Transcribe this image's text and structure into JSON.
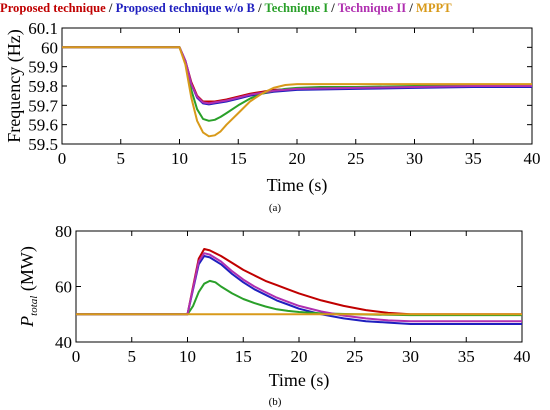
{
  "legend": {
    "entries": [
      {
        "label": "Proposed technique",
        "color": "#c00000"
      },
      {
        "label": "Proposed technique w/o B",
        "color": "#1f1fbf"
      },
      {
        "label": "Technique I",
        "color": "#2aa02a"
      },
      {
        "label": "Technique II",
        "color": "#b02fb0"
      },
      {
        "label": "MPPT",
        "color": "#d89a1a"
      }
    ],
    "separator": " / "
  },
  "chart_data": [
    {
      "type": "line",
      "caption": "(a)",
      "xlabel": "Time (s)",
      "ylabel": "Frequency (Hz)",
      "xlim": [
        0,
        40
      ],
      "ylim": [
        59.5,
        60.1
      ],
      "xticks": [
        0,
        5,
        10,
        15,
        20,
        25,
        30,
        35,
        40
      ],
      "yticks": [
        59.5,
        59.6,
        59.7,
        59.8,
        59.9,
        60.0,
        60.1
      ],
      "ytick_labels": [
        "59.5",
        "59.6",
        "59.7",
        "59.8",
        "59.9",
        "60",
        "60.1"
      ],
      "grid": false,
      "series": [
        {
          "name": "Proposed technique",
          "color": "#c00000",
          "x": [
            0,
            10,
            10.5,
            11,
            11.5,
            12,
            12.5,
            13,
            14,
            15,
            16,
            17,
            18,
            20,
            25,
            30,
            35,
            40
          ],
          "y": [
            60.0,
            60.0,
            59.93,
            59.82,
            59.75,
            59.72,
            59.72,
            59.72,
            59.73,
            59.745,
            59.76,
            59.77,
            59.78,
            59.785,
            59.79,
            59.795,
            59.8,
            59.8
          ]
        },
        {
          "name": "Proposed technique w/o B",
          "color": "#1f1fbf",
          "x": [
            0,
            10,
            10.5,
            11,
            11.5,
            12,
            12.5,
            13,
            14,
            15,
            16,
            17,
            18,
            20,
            25,
            30,
            35,
            40
          ],
          "y": [
            60.0,
            60.0,
            59.93,
            59.81,
            59.74,
            59.71,
            59.705,
            59.71,
            59.72,
            59.735,
            59.75,
            59.76,
            59.77,
            59.78,
            59.785,
            59.79,
            59.795,
            59.795
          ]
        },
        {
          "name": "Technique I",
          "color": "#2aa02a",
          "x": [
            0,
            10,
            10.5,
            11,
            11.5,
            12,
            12.5,
            13,
            13.5,
            14,
            15,
            16,
            17,
            18,
            19,
            20,
            22,
            25,
            30,
            35,
            40
          ],
          "y": [
            60.0,
            60.0,
            59.92,
            59.78,
            59.68,
            59.63,
            59.62,
            59.625,
            59.64,
            59.66,
            59.7,
            59.735,
            59.76,
            59.775,
            59.785,
            59.79,
            59.795,
            59.795,
            59.8,
            59.8,
            59.8
          ]
        },
        {
          "name": "Technique II",
          "color": "#b02fb0",
          "x": [
            0,
            10,
            10.5,
            11,
            11.5,
            12,
            12.5,
            13,
            14,
            15,
            16,
            17,
            18,
            20,
            25,
            30,
            35,
            40
          ],
          "y": [
            60.0,
            60.0,
            59.93,
            59.81,
            59.745,
            59.715,
            59.71,
            59.715,
            59.725,
            59.74,
            59.755,
            59.765,
            59.775,
            59.785,
            59.79,
            59.795,
            59.8,
            59.8
          ]
        },
        {
          "name": "MPPT",
          "color": "#d89a1a",
          "x": [
            0,
            10,
            10.5,
            11,
            11.5,
            12,
            12.5,
            13,
            13.5,
            14,
            15,
            16,
            17,
            18,
            19,
            20,
            22,
            25,
            30,
            35,
            40
          ],
          "y": [
            60.0,
            60.0,
            59.91,
            59.74,
            59.62,
            59.56,
            59.54,
            59.545,
            59.565,
            59.6,
            59.66,
            59.72,
            59.76,
            59.79,
            59.805,
            59.81,
            59.81,
            59.81,
            59.81,
            59.81,
            59.81
          ]
        }
      ]
    },
    {
      "type": "line",
      "caption": "(b)",
      "xlabel": "Time (s)",
      "ylabel_main": "P",
      "ylabel_sub": "total",
      "ylabel_unit": " (MW)",
      "xlim": [
        0,
        40
      ],
      "ylim": [
        40,
        80
      ],
      "xticks": [
        0,
        5,
        10,
        15,
        20,
        25,
        30,
        35,
        40
      ],
      "yticks": [
        40,
        60,
        80
      ],
      "grid": false,
      "series": [
        {
          "name": "Proposed technique",
          "color": "#c00000",
          "x": [
            0,
            10,
            10.5,
            11,
            11.5,
            12,
            13,
            14,
            15,
            16,
            17,
            18,
            19,
            20,
            22,
            24,
            26,
            28,
            30,
            35,
            40
          ],
          "y": [
            50,
            50,
            60,
            70,
            73.5,
            73,
            71,
            68.5,
            66,
            64,
            62,
            60.5,
            59,
            57.5,
            55,
            53,
            51.5,
            50.5,
            50,
            50,
            50
          ]
        },
        {
          "name": "Proposed technique w/o B",
          "color": "#1f1fbf",
          "x": [
            0,
            10,
            10.5,
            11,
            11.5,
            12,
            13,
            14,
            15,
            16,
            17,
            18,
            19,
            20,
            22,
            24,
            26,
            28,
            30,
            35,
            40
          ],
          "y": [
            50,
            50,
            59,
            68,
            71,
            70.5,
            68,
            64.5,
            61.5,
            59,
            57,
            55,
            53.5,
            52,
            50,
            48.5,
            47.5,
            47,
            46.5,
            46.5,
            46.5
          ]
        },
        {
          "name": "Technique I",
          "color": "#2aa02a",
          "x": [
            0,
            10,
            10.5,
            11,
            11.5,
            12,
            12.5,
            13,
            14,
            15,
            16,
            17,
            18,
            19,
            20,
            22,
            25,
            30,
            35,
            40
          ],
          "y": [
            50,
            50,
            53,
            58,
            61,
            62,
            61.5,
            60,
            57.5,
            55.5,
            54,
            52.8,
            51.8,
            51.2,
            50.8,
            50.3,
            50,
            49.7,
            49.7,
            49.7
          ]
        },
        {
          "name": "Technique II",
          "color": "#b02fb0",
          "x": [
            0,
            10,
            10.5,
            11,
            11.5,
            12,
            13,
            14,
            15,
            16,
            17,
            18,
            19,
            20,
            22,
            24,
            26,
            28,
            30,
            35,
            40
          ],
          "y": [
            50,
            50,
            59.5,
            69,
            72,
            71.5,
            69,
            65.5,
            62.5,
            60,
            58,
            56,
            54.5,
            53,
            51,
            49.5,
            48.5,
            47.8,
            47.5,
            47.5,
            47.5
          ]
        },
        {
          "name": "MPPT",
          "color": "#d89a1a",
          "x": [
            0,
            40
          ],
          "y": [
            50,
            50
          ]
        }
      ]
    }
  ]
}
